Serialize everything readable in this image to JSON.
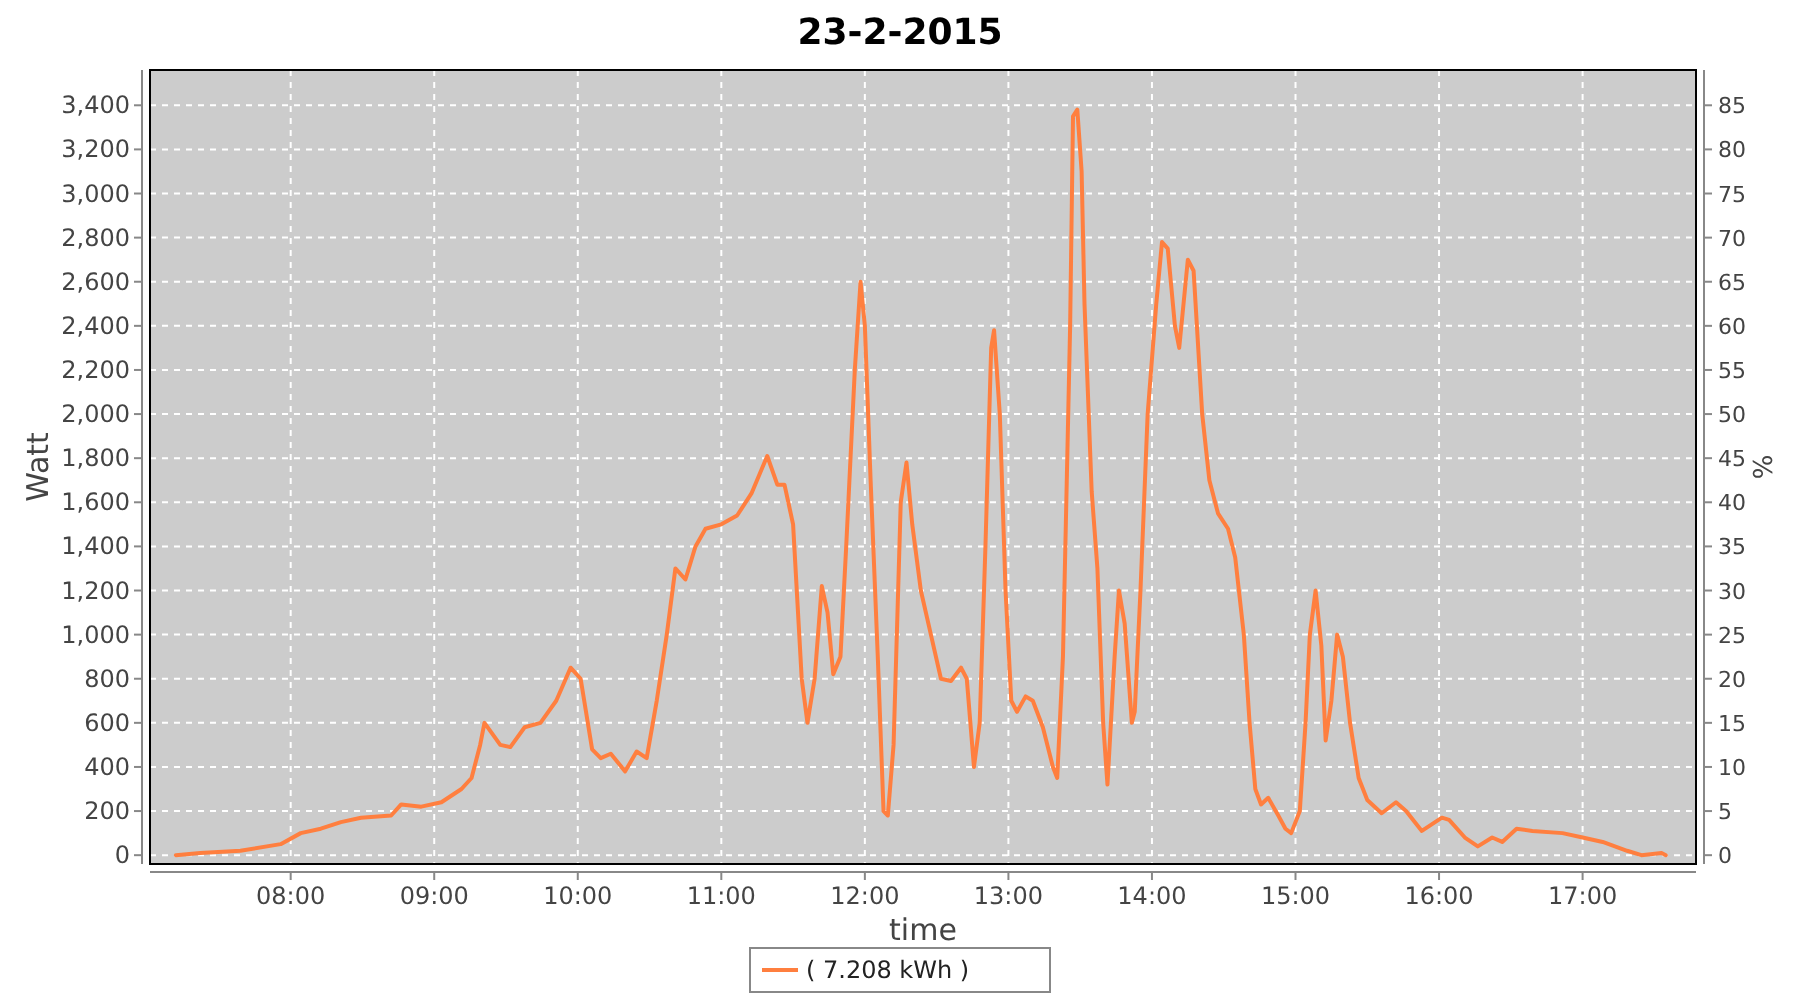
{
  "chart_data": {
    "type": "line",
    "title": "23-2-2015",
    "xlabel": "time",
    "ylabel": "Watt",
    "y2label": "%",
    "xlim": [
      7.02,
      17.79
    ],
    "xticks": [
      {
        "value": 8,
        "label": "08:00"
      },
      {
        "value": 9,
        "label": "09:00"
      },
      {
        "value": 10,
        "label": "10:00"
      },
      {
        "value": 11,
        "label": "11:00"
      },
      {
        "value": 12,
        "label": "12:00"
      },
      {
        "value": 13,
        "label": "13:00"
      },
      {
        "value": 14,
        "label": "14:00"
      },
      {
        "value": 15,
        "label": "15:00"
      },
      {
        "value": 16,
        "label": "16:00"
      },
      {
        "value": 17,
        "label": "17:00"
      }
    ],
    "ylim": [
      -40,
      3560
    ],
    "yticks": [
      0,
      200,
      400,
      600,
      800,
      {
        "value": 1000,
        "label": "1,000"
      },
      {
        "value": 1200,
        "label": "1,200"
      },
      {
        "value": 1400,
        "label": "1,400"
      },
      {
        "value": 1600,
        "label": "1,600"
      },
      {
        "value": 1800,
        "label": "1,800"
      },
      {
        "value": 2000,
        "label": "2,000"
      },
      {
        "value": 2200,
        "label": "2,200"
      },
      {
        "value": 2400,
        "label": "2,400"
      },
      {
        "value": 2600,
        "label": "2,600"
      },
      {
        "value": 2800,
        "label": "2,800"
      },
      {
        "value": 3000,
        "label": "3,000"
      },
      {
        "value": 3200,
        "label": "3,200"
      },
      {
        "value": 3400,
        "label": "3,400"
      }
    ],
    "y2lim": [
      -1,
      89
    ],
    "y2ticks": [
      0,
      5,
      10,
      15,
      20,
      25,
      30,
      35,
      40,
      45,
      50,
      55,
      60,
      65,
      70,
      75,
      80,
      85
    ],
    "grid": true,
    "legend": "bottom",
    "marker": "none",
    "line_style": "solid",
    "series": [
      {
        "name": "( 7.208 kWh )",
        "color": "#ff7f3f",
        "x": [
          7.2,
          7.37,
          7.65,
          7.93,
          8.07,
          8.21,
          8.35,
          8.49,
          8.7,
          8.77,
          8.91,
          9.05,
          9.19,
          9.26,
          9.32,
          9.35,
          9.46,
          9.53,
          9.63,
          9.74,
          9.85,
          9.95,
          10.02,
          10.1,
          10.16,
          10.23,
          10.33,
          10.41,
          10.48,
          10.55,
          10.62,
          10.68,
          10.75,
          10.82,
          10.89,
          11.0,
          11.11,
          11.21,
          11.32,
          11.39,
          11.44,
          11.5,
          11.56,
          11.6,
          11.65,
          11.7,
          11.74,
          11.78,
          11.83,
          11.87,
          11.93,
          11.97,
          12.0,
          12.04,
          12.09,
          12.13,
          12.16,
          12.2,
          12.25,
          12.29,
          12.33,
          12.39,
          12.46,
          12.53,
          12.6,
          12.67,
          12.71,
          12.76,
          12.8,
          12.84,
          12.88,
          12.9,
          12.94,
          12.98,
          13.02,
          13.06,
          13.12,
          13.17,
          13.24,
          13.31,
          13.34,
          13.38,
          13.43,
          13.45,
          13.48,
          13.51,
          13.53,
          13.58,
          13.62,
          13.66,
          13.69,
          13.74,
          13.77,
          13.81,
          13.86,
          13.88,
          13.92,
          13.97,
          14.03,
          14.07,
          14.11,
          14.16,
          14.19,
          14.25,
          14.29,
          14.35,
          14.4,
          14.46,
          14.53,
          14.58,
          14.64,
          14.68,
          14.72,
          14.76,
          14.81,
          14.88,
          14.93,
          14.97,
          15.03,
          15.07,
          15.1,
          15.14,
          15.18,
          15.21,
          15.25,
          15.29,
          15.33,
          15.38,
          15.44,
          15.5,
          15.6,
          15.7,
          15.77,
          15.88,
          16.02,
          16.07,
          16.18,
          16.27,
          16.37,
          16.44,
          16.54,
          16.65,
          16.86,
          17.0,
          17.14,
          17.31,
          17.41,
          17.55,
          17.58
        ],
        "values": [
          0,
          10,
          20,
          50,
          100,
          120,
          150,
          170,
          180,
          230,
          220,
          240,
          300,
          350,
          500,
          600,
          500,
          490,
          580,
          600,
          700,
          850,
          800,
          480,
          440,
          460,
          380,
          470,
          440,
          700,
          1000,
          1300,
          1250,
          1400,
          1480,
          1500,
          1540,
          1640,
          1810,
          1680,
          1680,
          1500,
          800,
          600,
          800,
          1220,
          1100,
          820,
          900,
          1400,
          2200,
          2600,
          2400,
          1700,
          900,
          200,
          180,
          500,
          1600,
          1780,
          1500,
          1200,
          1000,
          800,
          790,
          850,
          800,
          400,
          600,
          1400,
          2300,
          2380,
          2000,
          1200,
          700,
          650,
          720,
          700,
          580,
          400,
          350,
          900,
          2400,
          3350,
          3380,
          3100,
          2500,
          1650,
          1300,
          600,
          320,
          900,
          1200,
          1050,
          600,
          650,
          1200,
          2000,
          2500,
          2780,
          2750,
          2400,
          2300,
          2700,
          2650,
          2000,
          1700,
          1550,
          1480,
          1350,
          1000,
          600,
          300,
          230,
          260,
          180,
          120,
          100,
          200,
          600,
          1000,
          1200,
          950,
          520,
          700,
          1000,
          900,
          600,
          350,
          250,
          190,
          240,
          200,
          110,
          170,
          160,
          80,
          40,
          80,
          60,
          120,
          110,
          100,
          80,
          60,
          20,
          0,
          10,
          0
        ]
      }
    ]
  }
}
